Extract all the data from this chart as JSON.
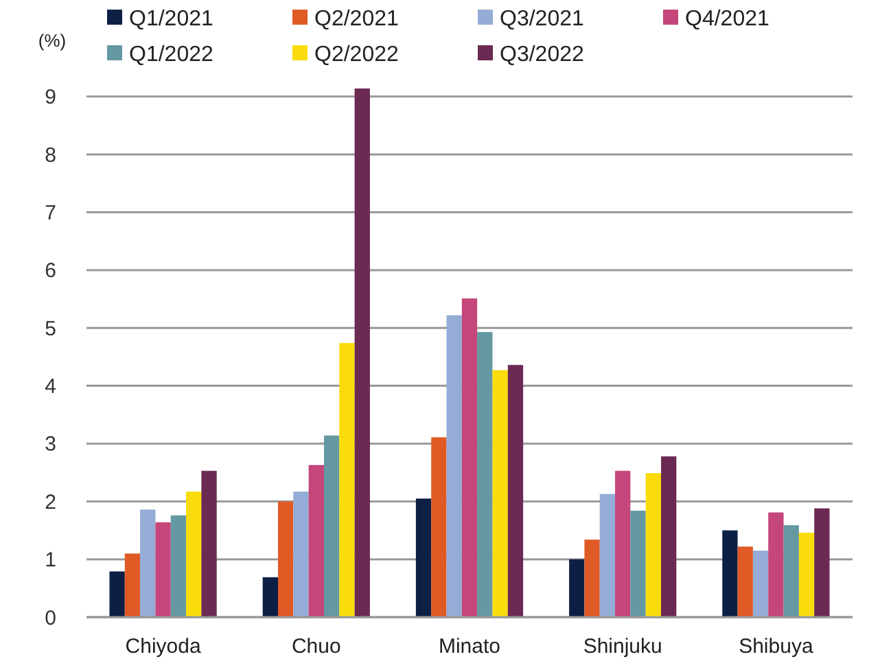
{
  "chart_data": {
    "type": "bar",
    "ylabel": "(%)",
    "categories": [
      "Chiyoda",
      "Chuo",
      "Minato",
      "Shinjuku",
      "Shibuya"
    ],
    "series": [
      {
        "name": "Q1/2021",
        "color": "#0d1f45",
        "values": [
          0.79,
          0.69,
          2.05,
          1.0,
          1.5
        ]
      },
      {
        "name": "Q2/2021",
        "color": "#e05a26",
        "values": [
          1.1,
          2.0,
          3.11,
          1.34,
          1.22
        ]
      },
      {
        "name": "Q3/2021",
        "color": "#94acd6",
        "values": [
          1.86,
          2.17,
          5.22,
          2.13,
          1.15
        ]
      },
      {
        "name": "Q4/2021",
        "color": "#c4467a",
        "values": [
          1.64,
          2.63,
          5.51,
          2.53,
          1.81
        ]
      },
      {
        "name": "Q1/2022",
        "color": "#6499a3",
        "values": [
          1.76,
          3.14,
          4.93,
          1.84,
          1.59
        ]
      },
      {
        "name": "Q2/2022",
        "color": "#f9dc0a",
        "values": [
          2.17,
          4.74,
          4.27,
          2.49,
          1.46
        ]
      },
      {
        "name": "Q3/2022",
        "color": "#6b2a52",
        "values": [
          2.53,
          9.14,
          4.36,
          2.78,
          1.88
        ]
      }
    ],
    "ylim": [
      0,
      9.2
    ],
    "yticks": [
      0,
      1,
      2,
      3,
      4,
      5,
      6,
      7,
      8,
      9
    ],
    "grid": "y",
    "legend": "top"
  }
}
